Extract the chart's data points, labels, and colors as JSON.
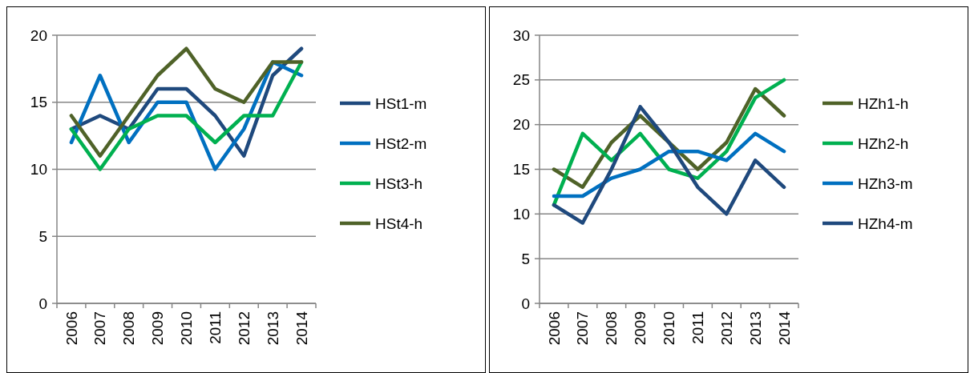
{
  "chart_data": [
    {
      "type": "line",
      "categories": [
        "2006",
        "2007",
        "2008",
        "2009",
        "2010",
        "2011",
        "2012",
        "2013",
        "2014"
      ],
      "ylim": [
        0,
        20
      ],
      "yticks": [
        0,
        5,
        10,
        15,
        20
      ],
      "grid": "y",
      "legend": "right",
      "series": [
        {
          "name": "HSt1-m",
          "color": "#1f497d",
          "values": [
            13,
            14,
            13,
            16,
            16,
            14,
            11,
            17,
            19
          ]
        },
        {
          "name": "HSt2-m",
          "color": "#0070c0",
          "values": [
            12,
            17,
            12,
            15,
            15,
            10,
            13,
            18,
            17
          ]
        },
        {
          "name": "HSt3-h",
          "color": "#00b050",
          "values": [
            13,
            10,
            13,
            14,
            14,
            12,
            14,
            14,
            18
          ]
        },
        {
          "name": "HSt4-h",
          "color": "#4f6228",
          "values": [
            14,
            11,
            14,
            17,
            19,
            16,
            15,
            18,
            18
          ]
        }
      ]
    },
    {
      "type": "line",
      "categories": [
        "2006",
        "2007",
        "2008",
        "2009",
        "2010",
        "2011",
        "2012",
        "2013",
        "2014"
      ],
      "ylim": [
        0,
        30
      ],
      "yticks": [
        0,
        5,
        10,
        15,
        20,
        25,
        30
      ],
      "grid": "y",
      "legend": "right",
      "series": [
        {
          "name": "HZh1-h",
          "color": "#4f6228",
          "values": [
            15,
            13,
            18,
            21,
            18,
            15,
            18,
            24,
            21
          ]
        },
        {
          "name": "HZh2-h",
          "color": "#00b050",
          "values": [
            11,
            19,
            16,
            19,
            15,
            14,
            17,
            23,
            25
          ]
        },
        {
          "name": "HZh3-m",
          "color": "#0070c0",
          "values": [
            12,
            12,
            14,
            15,
            17,
            17,
            16,
            19,
            17
          ]
        },
        {
          "name": "HZh4-m",
          "color": "#1f497d",
          "values": [
            11,
            9,
            15,
            22,
            18,
            13,
            10,
            16,
            13
          ]
        }
      ]
    }
  ]
}
